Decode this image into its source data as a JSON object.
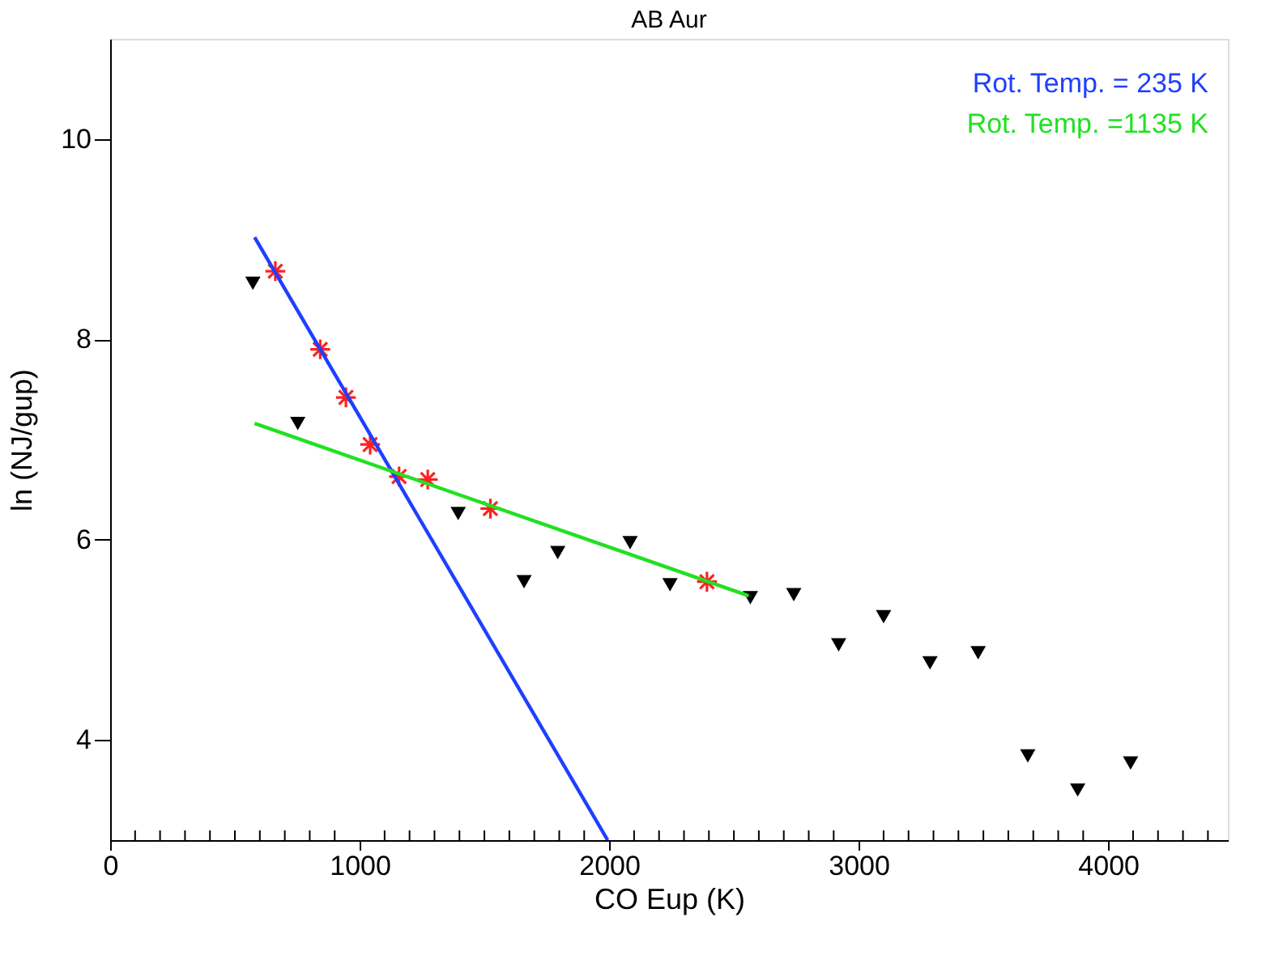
{
  "chart_data": {
    "type": "scatter",
    "title": "AB Aur",
    "xlabel": "CO Eup (K)",
    "ylabel": "ln (NJ/gup)",
    "xlim": [
      0,
      4480
    ],
    "ylim": [
      3,
      11
    ],
    "xticks": [
      0,
      {
        "value": 100,
        "label": null
      },
      {
        "value": 200,
        "label": null
      },
      {
        "value": 300,
        "label": null
      },
      {
        "value": 400,
        "label": null
      },
      {
        "value": 500,
        "label": null
      },
      {
        "value": 600,
        "label": null
      },
      {
        "value": 700,
        "label": null
      },
      {
        "value": 800,
        "label": null
      },
      {
        "value": 900,
        "label": null
      },
      1000,
      {
        "value": 1100,
        "label": null
      },
      {
        "value": 1200,
        "label": null
      },
      {
        "value": 1300,
        "label": null
      },
      {
        "value": 1400,
        "label": null
      },
      {
        "value": 1500,
        "label": null
      },
      {
        "value": 1600,
        "label": null
      },
      {
        "value": 1700,
        "label": null
      },
      {
        "value": 1800,
        "label": null
      },
      {
        "value": 1900,
        "label": null
      },
      2000,
      {
        "value": 2100,
        "label": null
      },
      {
        "value": 2200,
        "label": null
      },
      {
        "value": 2300,
        "label": null
      },
      {
        "value": 2400,
        "label": null
      },
      {
        "value": 2500,
        "label": null
      },
      {
        "value": 2600,
        "label": null
      },
      {
        "value": 2700,
        "label": null
      },
      {
        "value": 2800,
        "label": null
      },
      {
        "value": 2900,
        "label": null
      },
      3000,
      {
        "value": 3100,
        "label": null
      },
      {
        "value": 3200,
        "label": null
      },
      {
        "value": 3300,
        "label": null
      },
      {
        "value": 3400,
        "label": null
      },
      {
        "value": 3500,
        "label": null
      },
      {
        "value": 3600,
        "label": null
      },
      {
        "value": 3700,
        "label": null
      },
      {
        "value": 3800,
        "label": null
      },
      {
        "value": 3900,
        "label": null
      },
      4000,
      {
        "value": 4100,
        "label": null
      },
      {
        "value": 4200,
        "label": null
      },
      {
        "value": 4300,
        "label": null
      },
      {
        "value": 4400,
        "label": null
      }
    ],
    "yticks": [
      4,
      6,
      8,
      10
    ],
    "grid": false,
    "legend": "top right",
    "series": [
      {
        "marker": "cross",
        "color": "#ff2020",
        "x": [
          662,
          842,
          945,
          1042,
          1158,
          1273,
          1524,
          2392
        ],
        "values": [
          8.68,
          7.9,
          7.42,
          6.95,
          6.63,
          6.6,
          6.31,
          5.58
        ]
      },
      {
        "marker": "triangle",
        "color": "#000000",
        "x": [
          572,
          752,
          1395,
          1659,
          1794,
          2084,
          2244,
          2566,
          2740,
          2920,
          3100,
          3286,
          3479,
          3678,
          3878,
          4090
        ],
        "values": [
          8.56,
          7.16,
          6.26,
          5.58,
          5.87,
          5.97,
          5.55,
          5.42,
          5.45,
          4.95,
          5.23,
          4.77,
          4.87,
          3.84,
          3.5,
          3.77
        ]
      },
      {
        "type": "line",
        "name": "Rot. Temp. = 235 K",
        "color": "#1f3fff",
        "x": [
          579,
          1994
        ],
        "values": [
          9.02,
          3.0
        ]
      },
      {
        "type": "line",
        "name": "Rot. Temp. =1135 K",
        "color": "#22e022",
        "x": [
          579,
          2559
        ],
        "values": [
          7.16,
          5.44
        ]
      }
    ]
  }
}
